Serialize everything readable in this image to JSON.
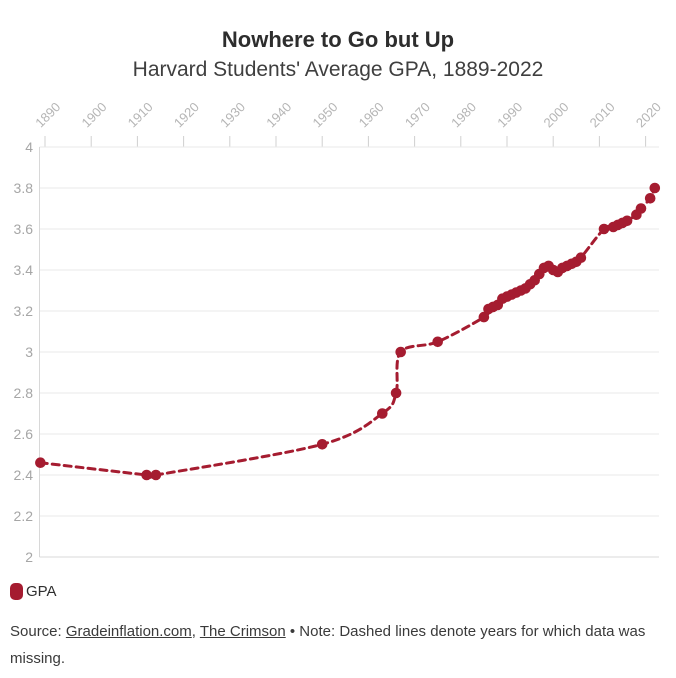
{
  "header": {
    "title": "Nowhere to Go but Up",
    "subtitle": "Harvard Students' Average GPA, 1889-2022"
  },
  "legend": {
    "label": "GPA",
    "color": "#A51C30"
  },
  "source": {
    "prefix": "Source: ",
    "link1": "Gradeinflation.com",
    "separator": ", ",
    "link2": "The Crimson",
    "note": " • Note: Dashed lines denote years for which data was missing."
  },
  "chart_data": {
    "type": "line",
    "title": "Nowhere to Go but Up",
    "subtitle": "Harvard Students' Average GPA, 1889-2022",
    "line_style": "dashed",
    "marker": "circle",
    "color": "#A51C30",
    "grid": true,
    "x_axis_position": "top",
    "legend_position": "bottom-left",
    "xlim": [
      1888,
      2023
    ],
    "ylim": [
      2,
      4
    ],
    "x_ticks": [
      1890,
      1900,
      1910,
      1920,
      1930,
      1940,
      1950,
      1960,
      1970,
      1980,
      1990,
      2000,
      2010,
      2020
    ],
    "x_tick_labels": [
      "1890",
      "1900",
      "1910",
      "1920",
      "1930",
      "1940",
      "1950",
      "1960",
      "1970",
      "1980",
      "1990",
      "2000",
      "2010",
      "2020"
    ],
    "y_ticks": [
      4,
      3.8,
      3.6,
      3.4,
      3.2,
      3,
      2.8,
      2.6,
      2.4,
      2.2,
      2
    ],
    "y_tick_labels": [
      "4",
      "3.8",
      "3.6",
      "3.4",
      "3.2",
      "3",
      "2.8",
      "2.6",
      "2.4",
      "2.2",
      "2"
    ],
    "series": [
      {
        "name": "GPA",
        "points": [
          [
            1889,
            2.46
          ],
          [
            1912,
            2.4
          ],
          [
            1914,
            2.4
          ],
          [
            1950,
            2.55
          ],
          [
            1963,
            2.7
          ],
          [
            1966,
            2.8
          ],
          [
            1967,
            3.0
          ],
          [
            1975,
            3.05
          ],
          [
            1985,
            3.17
          ],
          [
            1986,
            3.21
          ],
          [
            1987,
            3.22
          ],
          [
            1988,
            3.23
          ],
          [
            1989,
            3.26
          ],
          [
            1990,
            3.27
          ],
          [
            1991,
            3.28
          ],
          [
            1992,
            3.29
          ],
          [
            1993,
            3.3
          ],
          [
            1994,
            3.31
          ],
          [
            1995,
            3.33
          ],
          [
            1996,
            3.35
          ],
          [
            1997,
            3.38
          ],
          [
            1998,
            3.41
          ],
          [
            1999,
            3.42
          ],
          [
            2000,
            3.4
          ],
          [
            2001,
            3.39
          ],
          [
            2002,
            3.41
          ],
          [
            2003,
            3.42
          ],
          [
            2004,
            3.43
          ],
          [
            2005,
            3.44
          ],
          [
            2006,
            3.46
          ],
          [
            2011,
            3.6
          ],
          [
            2013,
            3.61
          ],
          [
            2014,
            3.62
          ],
          [
            2015,
            3.63
          ],
          [
            2016,
            3.64
          ],
          [
            2018,
            3.67
          ],
          [
            2019,
            3.7
          ],
          [
            2021,
            3.75
          ],
          [
            2022,
            3.8
          ]
        ]
      }
    ]
  }
}
